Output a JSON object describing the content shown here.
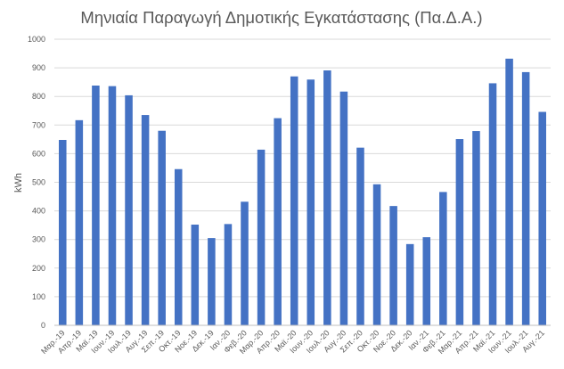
{
  "chart_data": {
    "type": "bar",
    "title": "Μηνιαία Παραγωγή Δημοτικής Εγκατάστασης (Πα.Δ.Α.)",
    "xlabel": "",
    "ylabel": "kWh",
    "ylim": [
      0,
      1000
    ],
    "ytick_step": 100,
    "grid": true,
    "legend": "none",
    "bar_color": "#4472c4",
    "categories": [
      "Μαρ.-19",
      "Απρ.-19",
      "Μαϊ.-19",
      "Ιουν.-19",
      "Ιουλ.-19",
      "Αυγ.-19",
      "Σεπ.-19",
      "Οκτ.-19",
      "Νοε.-19",
      "Δεκ.-19",
      "Ιαν.-20",
      "Φεβ.-20",
      "Μαρ.-20",
      "Απρ.-20",
      "Μαϊ.-20",
      "Ιουν.-20",
      "Ιουλ.-20",
      "Αυγ.-20",
      "Σεπ.-20",
      "Οκτ.-20",
      "Νοε.-20",
      "Δεκ.-20",
      "Ιαν.-21",
      "Φεβ.-21",
      "Μαρ.-21",
      "Απρ.-21",
      "Μαϊ.-21",
      "Ιουν.-21",
      "Ιουλ.-21",
      "Αυγ.-21"
    ],
    "values": [
      648,
      717,
      838,
      836,
      804,
      735,
      680,
      546,
      352,
      305,
      354,
      432,
      614,
      724,
      870,
      859,
      891,
      817,
      621,
      493,
      417,
      284,
      308,
      466,
      651,
      679,
      846,
      932,
      885,
      746
    ]
  }
}
